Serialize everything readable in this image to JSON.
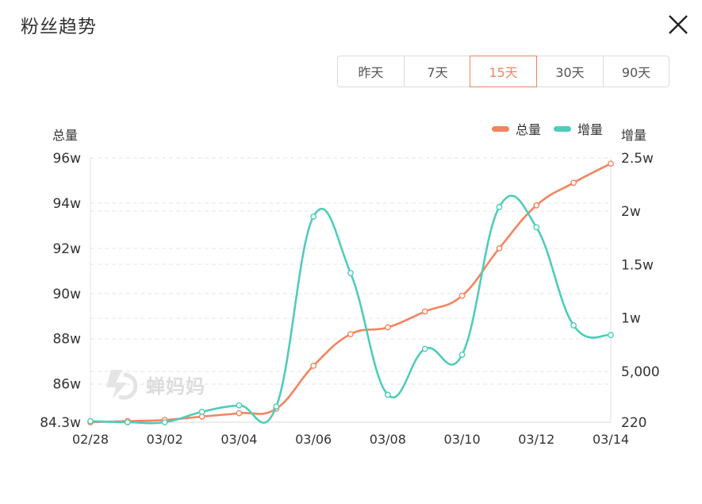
{
  "header": {
    "title": "粉丝趋势",
    "close_icon": "close-icon"
  },
  "range_tabs": {
    "selected": "15天",
    "items": [
      {
        "label": "昨天"
      },
      {
        "label": "7天"
      },
      {
        "label": "15天"
      },
      {
        "label": "30天"
      },
      {
        "label": "90天"
      }
    ]
  },
  "watermark": {
    "text": "蝉妈妈",
    "icon": "chanmama-logo-icon"
  },
  "chart_data": {
    "type": "line",
    "x": [
      "02/28",
      "03/01",
      "03/02",
      "03/03",
      "03/04",
      "03/05",
      "03/06",
      "03/07",
      "03/08",
      "03/09",
      "03/10",
      "03/11",
      "03/12",
      "03/13",
      "03/14"
    ],
    "x_tick_labels": [
      "02/28",
      "03/02",
      "03/04",
      "03/06",
      "03/08",
      "03/10",
      "03/12",
      "03/14"
    ],
    "left_axis": {
      "label": "总量",
      "ylim": [
        84.3,
        96
      ],
      "unit": "w",
      "tick_values": [
        84.3,
        86,
        88,
        90,
        92,
        94,
        96
      ],
      "tick_labels": [
        "84.3w",
        "86w",
        "88w",
        "90w",
        "92w",
        "94w",
        "96w"
      ]
    },
    "right_axis": {
      "label": "增量",
      "ylim": [
        220,
        25000
      ],
      "tick_values": [
        220,
        5000,
        10000,
        15000,
        20000,
        25000
      ],
      "tick_labels": [
        "220",
        "5,000",
        "1w",
        "1.5w",
        "2w",
        "2.5w"
      ]
    },
    "grid": true,
    "legend_position": "top-right",
    "series": [
      {
        "name": "总量",
        "axis": "left",
        "color": "#f4845f",
        "values": [
          84.3,
          84.35,
          84.4,
          84.55,
          84.7,
          84.9,
          86.8,
          88.2,
          88.5,
          89.2,
          89.9,
          92.0,
          93.9,
          94.9,
          95.75
        ]
      },
      {
        "name": "增量",
        "axis": "right",
        "color": "#4ecdb9",
        "values": [
          320,
          220,
          220,
          1200,
          1800,
          1700,
          19500,
          14200,
          2800,
          7100,
          6550,
          20400,
          18500,
          9300,
          8400
        ]
      }
    ]
  }
}
